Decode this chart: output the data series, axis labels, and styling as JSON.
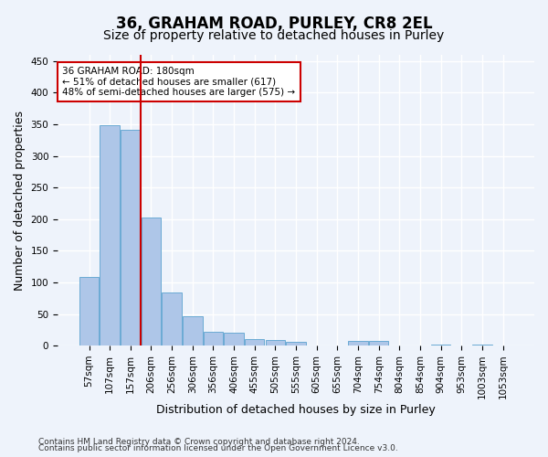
{
  "title1": "36, GRAHAM ROAD, PURLEY, CR8 2EL",
  "title2": "Size of property relative to detached houses in Purley",
  "xlabel": "Distribution of detached houses by size in Purley",
  "ylabel": "Number of detached properties",
  "bar_labels": [
    "57sqm",
    "107sqm",
    "157sqm",
    "206sqm",
    "256sqm",
    "306sqm",
    "356sqm",
    "406sqm",
    "455sqm",
    "505sqm",
    "555sqm",
    "605sqm",
    "655sqm",
    "704sqm",
    "754sqm",
    "804sqm",
    "854sqm",
    "904sqm",
    "953sqm",
    "1003sqm",
    "1053sqm"
  ],
  "bar_values": [
    108,
    349,
    342,
    203,
    84,
    46,
    22,
    20,
    10,
    9,
    6,
    0,
    0,
    7,
    7,
    0,
    0,
    2,
    0,
    2,
    0
  ],
  "bar_color": "#aec6e8",
  "bar_edge_color": "#6aaad4",
  "vline_color": "#cc0000",
  "annotation_text": "36 GRAHAM ROAD: 180sqm\n← 51% of detached houses are smaller (617)\n48% of semi-detached houses are larger (575) →",
  "annotation_box_color": "#ffffff",
  "annotation_box_edge": "#cc0000",
  "ylim": [
    0,
    460
  ],
  "yticks": [
    0,
    50,
    100,
    150,
    200,
    250,
    300,
    350,
    400,
    450
  ],
  "footer1": "Contains HM Land Registry data © Crown copyright and database right 2024.",
  "footer2": "Contains public sector information licensed under the Open Government Licence v3.0.",
  "bg_color": "#eef3fb",
  "plot_bg_color": "#eef3fb",
  "grid_color": "#ffffff",
  "title1_fontsize": 12,
  "title2_fontsize": 10,
  "tick_fontsize": 7.5,
  "ylabel_fontsize": 9,
  "xlabel_fontsize": 9
}
